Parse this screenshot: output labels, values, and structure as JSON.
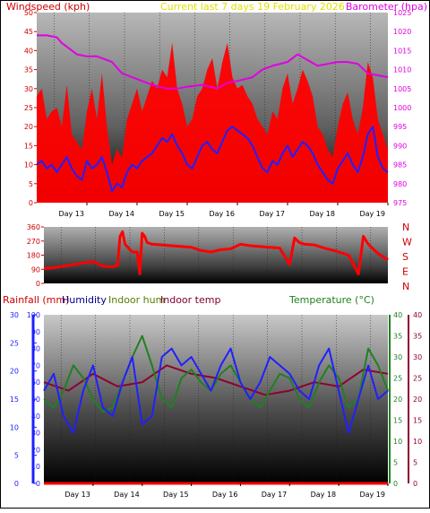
{
  "colors": {
    "wind": "#ff0000",
    "gust": "#2020ff",
    "baro": "#e000e0",
    "current": "#e0e000",
    "dir": "#ff0000",
    "humidity": "#2020ff",
    "indoor_hum": "#208020",
    "indoor_temp": "#900030",
    "temperature": "#208020",
    "rain": "#ff0000",
    "rain_axis": "#2020ff",
    "panel_grey": "#8c8c8c",
    "panel_dark": "#000000",
    "title_dark": "#000000"
  },
  "chart_data": [
    {
      "type": "line",
      "title": "Current last 7 days 19 February 2026",
      "ylabel_left": "Windspeed (kph)",
      "ylabel_right": "Barometer (hpa)",
      "ylim_left": [
        0,
        50
      ],
      "ylim_right": [
        975,
        1025
      ],
      "left_ticks": [
        "0",
        "5",
        "10",
        "15",
        "20",
        "25",
        "30",
        "35",
        "40",
        "45",
        "50"
      ],
      "right_ticks": [
        "975",
        "980",
        "985",
        "990",
        "995",
        "1000",
        "1005",
        "1010",
        "1015",
        "1020",
        "1025"
      ],
      "x_labels": [
        "Day 13",
        "Day 14",
        "Day 15",
        "Day 16",
        "Day 17",
        "Day 18",
        "Day 19"
      ],
      "x_domain": [
        0,
        7
      ],
      "series": [
        {
          "key": "barometer",
          "axis": "right",
          "x": [
            0,
            0.2,
            0.4,
            0.5,
            0.8,
            1,
            1.2,
            1.5,
            1.7,
            2,
            2.3,
            2.6,
            2.8,
            3,
            3.3,
            3.6,
            3.8,
            4,
            4.3,
            4.5,
            4.7,
            5,
            5.2,
            5.4,
            5.6,
            5.8,
            6,
            6.2,
            6.4,
            6.6,
            6.8,
            7
          ],
          "values": [
            1019,
            1019,
            1018.5,
            1017,
            1014,
            1013.5,
            1013.5,
            1012,
            1009,
            1007.5,
            1006,
            1005,
            1005,
            1005.5,
            1006,
            1005,
            1006.5,
            1007,
            1008,
            1010,
            1011,
            1012,
            1014,
            1012.5,
            1011,
            1011.5,
            1012,
            1012,
            1011.5,
            1009,
            1008.5,
            1008
          ]
        },
        {
          "key": "gust",
          "axis": "left",
          "x": [
            0,
            0.1,
            0.2,
            0.3,
            0.4,
            0.5,
            0.6,
            0.7,
            0.8,
            0.9,
            1,
            1.1,
            1.2,
            1.3,
            1.4,
            1.5,
            1.6,
            1.7,
            1.8,
            1.9,
            2,
            2.1,
            2.2,
            2.3,
            2.4,
            2.5,
            2.6,
            2.7,
            2.8,
            2.9,
            3,
            3.1,
            3.2,
            3.3,
            3.4,
            3.5,
            3.6,
            3.7,
            3.8,
            3.9,
            4,
            4.1,
            4.2,
            4.3,
            4.4,
            4.5,
            4.6,
            4.7,
            4.8,
            4.9,
            5,
            5.1,
            5.2,
            5.3,
            5.4,
            5.5,
            5.6,
            5.7,
            5.8,
            5.9,
            6,
            6.1,
            6.2,
            6.3,
            6.4,
            6.5,
            6.6,
            6.7,
            6.8,
            6.9,
            7
          ],
          "values": [
            10,
            11,
            9,
            10,
            8,
            10,
            12,
            9,
            7,
            6,
            11,
            9,
            10,
            12,
            8,
            3,
            5,
            4,
            8,
            10,
            9,
            11,
            12,
            13,
            15,
            17,
            16,
            18,
            15,
            13,
            10,
            9,
            12,
            15,
            16,
            14,
            13,
            16,
            19,
            20,
            19,
            18,
            17,
            15,
            12,
            9,
            8,
            11,
            10,
            13,
            15,
            12,
            14,
            16,
            15,
            13,
            10,
            8,
            6,
            5,
            9,
            11,
            13,
            10,
            8,
            12,
            18,
            20,
            12,
            9,
            8
          ]
        },
        {
          "key": "windspeed",
          "axis": "left",
          "x": [
            0,
            0.1,
            0.2,
            0.3,
            0.4,
            0.5,
            0.6,
            0.7,
            0.8,
            0.9,
            1,
            1.1,
            1.2,
            1.3,
            1.4,
            1.5,
            1.6,
            1.7,
            1.8,
            1.9,
            2,
            2.1,
            2.2,
            2.3,
            2.4,
            2.5,
            2.6,
            2.7,
            2.8,
            2.9,
            3,
            3.1,
            3.2,
            3.3,
            3.4,
            3.5,
            3.6,
            3.7,
            3.8,
            3.9,
            4,
            4.1,
            4.2,
            4.3,
            4.4,
            4.5,
            4.6,
            4.7,
            4.8,
            4.9,
            5,
            5.1,
            5.2,
            5.3,
            5.4,
            5.5,
            5.6,
            5.7,
            5.8,
            5.9,
            6,
            6.1,
            6.2,
            6.3,
            6.4,
            6.5,
            6.6,
            6.7,
            6.8,
            6.9,
            7
          ],
          "values": [
            28,
            30,
            22,
            24,
            25,
            20,
            31,
            18,
            16,
            14,
            24,
            30,
            22,
            34,
            20,
            10,
            14,
            12,
            22,
            26,
            30,
            24,
            28,
            32,
            30,
            35,
            33,
            42,
            30,
            26,
            20,
            22,
            28,
            30,
            35,
            38,
            30,
            37,
            42,
            33,
            30,
            31,
            28,
            26,
            22,
            20,
            18,
            24,
            22,
            30,
            34,
            26,
            30,
            35,
            32,
            28,
            20,
            18,
            14,
            12,
            20,
            26,
            29,
            22,
            18,
            25,
            37,
            33,
            22,
            18,
            14
          ]
        }
      ]
    },
    {
      "type": "line",
      "ylabel_right": "N W S E N",
      "ylim": [
        0,
        360
      ],
      "left_ticks": [
        "0",
        "90",
        "180",
        "270",
        "360"
      ],
      "right_letters": [
        "N",
        "W",
        "S",
        "E",
        "N"
      ],
      "x_domain": [
        0,
        7
      ],
      "series": [
        {
          "key": "direction",
          "x": [
            0,
            0.2,
            0.4,
            0.6,
            0.8,
            1,
            1.2,
            1.4,
            1.5,
            1.55,
            1.6,
            1.65,
            1.8,
            1.9,
            1.95,
            2,
            2.05,
            2.1,
            2.2,
            2.4,
            2.6,
            2.8,
            3,
            3.2,
            3.4,
            3.6,
            3.8,
            4,
            4.2,
            4.4,
            4.6,
            4.8,
            5,
            5.1,
            5.2,
            5.3,
            5.5,
            5.7,
            5.9,
            6,
            6.2,
            6.4,
            6.5,
            6.6,
            6.8,
            7
          ],
          "values": [
            95,
            100,
            110,
            120,
            130,
            140,
            110,
            105,
            115,
            300,
            330,
            250,
            200,
            200,
            60,
            320,
            300,
            260,
            250,
            245,
            240,
            235,
            230,
            210,
            200,
            215,
            220,
            250,
            240,
            235,
            230,
            225,
            120,
            290,
            260,
            250,
            245,
            225,
            210,
            200,
            180,
            60,
            300,
            250,
            190,
            150
          ]
        }
      ]
    },
    {
      "type": "line",
      "left_title": "Rainfall (mm)",
      "humidity_title": "Humidity",
      "indoor_hum_title": "Indoor hum",
      "indoor_temp_title": "Indoor temp",
      "temp_title": "Temperature (°C)",
      "rain_ticks": [
        "0",
        "5",
        "10",
        "15",
        "20",
        "25",
        "30"
      ],
      "rain_lim": [
        0,
        30
      ],
      "hum_ticks": [
        "0",
        "10",
        "20",
        "30",
        "40",
        "50",
        "60",
        "70",
        "80",
        "90",
        "100"
      ],
      "hum_lim": [
        0,
        100
      ],
      "temp_ticks_a": [
        "0",
        "5",
        "10",
        "15",
        "20",
        "25",
        "30",
        "35",
        "40"
      ],
      "temp_ticks_b": [
        "0",
        "5",
        "10",
        "15",
        "20",
        "25",
        "30",
        "35",
        "40"
      ],
      "temp_lim": [
        0,
        40
      ],
      "x_labels": [
        "Day 13",
        "Day 14",
        "Day 15",
        "Day 16",
        "Day 17",
        "Day 18",
        "Day 19"
      ],
      "x_domain": [
        0,
        7
      ],
      "series": [
        {
          "key": "indoor_temp",
          "axis": "temp",
          "x": [
            0,
            0.5,
            1,
            1.5,
            2,
            2.5,
            3,
            3.5,
            4,
            4.5,
            5,
            5.5,
            6,
            6.5,
            7
          ],
          "values": [
            24,
            22,
            26,
            23,
            24,
            28,
            26,
            25,
            23,
            21,
            22,
            24,
            23,
            27,
            26
          ]
        },
        {
          "key": "temperature",
          "axis": "temp",
          "x": [
            0,
            0.2,
            0.4,
            0.6,
            0.8,
            1,
            1.2,
            1.4,
            1.6,
            1.8,
            2,
            2.2,
            2.4,
            2.6,
            2.8,
            3,
            3.2,
            3.4,
            3.6,
            3.8,
            4,
            4.2,
            4.4,
            4.6,
            4.8,
            5,
            5.2,
            5.4,
            5.6,
            5.8,
            6,
            6.2,
            6.4,
            6.6,
            6.8,
            7
          ],
          "values": [
            20,
            18,
            22,
            28,
            25,
            20,
            17,
            18,
            24,
            30,
            35,
            28,
            20,
            18,
            25,
            27,
            24,
            22,
            26,
            28,
            24,
            20,
            18,
            22,
            26,
            25,
            20,
            18,
            24,
            28,
            25,
            18,
            20,
            32,
            28,
            22
          ]
        },
        {
          "key": "humidity",
          "axis": "hum",
          "x": [
            0,
            0.2,
            0.4,
            0.6,
            0.8,
            1,
            1.2,
            1.4,
            1.6,
            1.8,
            2,
            2.2,
            2.4,
            2.6,
            2.8,
            3,
            3.2,
            3.4,
            3.6,
            3.8,
            4,
            4.2,
            4.4,
            4.6,
            4.8,
            5,
            5.2,
            5.4,
            5.6,
            5.8,
            6,
            6.2,
            6.4,
            6.6,
            6.8,
            7
          ],
          "values": [
            55,
            65,
            40,
            30,
            55,
            70,
            45,
            40,
            60,
            75,
            35,
            40,
            75,
            80,
            70,
            75,
            65,
            55,
            70,
            80,
            60,
            50,
            60,
            75,
            70,
            65,
            55,
            50,
            70,
            80,
            55,
            30,
            50,
            70,
            50,
            55
          ]
        },
        {
          "key": "rainfall",
          "axis": "rain",
          "x": [
            0,
            7
          ],
          "values": [
            0,
            0
          ]
        }
      ]
    }
  ]
}
